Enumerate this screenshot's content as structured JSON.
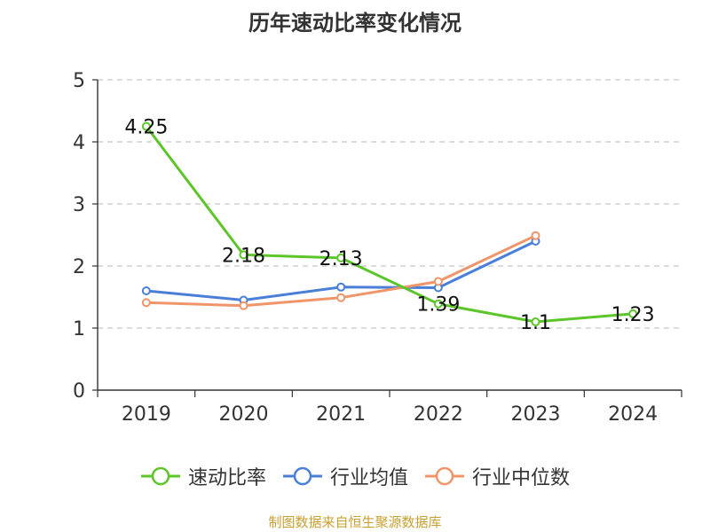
{
  "chart_data": {
    "type": "line",
    "title": "历年速动比率变化情况",
    "categories": [
      "2019",
      "2020",
      "2021",
      "2022",
      "2023",
      "2024"
    ],
    "ylim": [
      0,
      5
    ],
    "yticks": [
      0,
      1,
      2,
      3,
      4,
      5
    ],
    "grid": "horizontal dashed",
    "legend_position": "bottom",
    "series": [
      {
        "name": "速动比率",
        "color": "#5cc52a",
        "values": [
          4.25,
          2.18,
          2.13,
          1.39,
          1.1,
          1.23
        ],
        "labels": [
          "4.25",
          "2.18",
          "2.13",
          "1.39",
          "1.1",
          "1.23"
        ]
      },
      {
        "name": "行业均值",
        "color": "#4a7fd8",
        "values": [
          1.6,
          1.45,
          1.66,
          1.65,
          2.4,
          null
        ]
      },
      {
        "name": "行业中位数",
        "color": "#f0956a",
        "values": [
          1.41,
          1.36,
          1.49,
          1.75,
          2.49,
          null
        ]
      }
    ]
  },
  "source": "制图数据来自恒生聚源数据库"
}
